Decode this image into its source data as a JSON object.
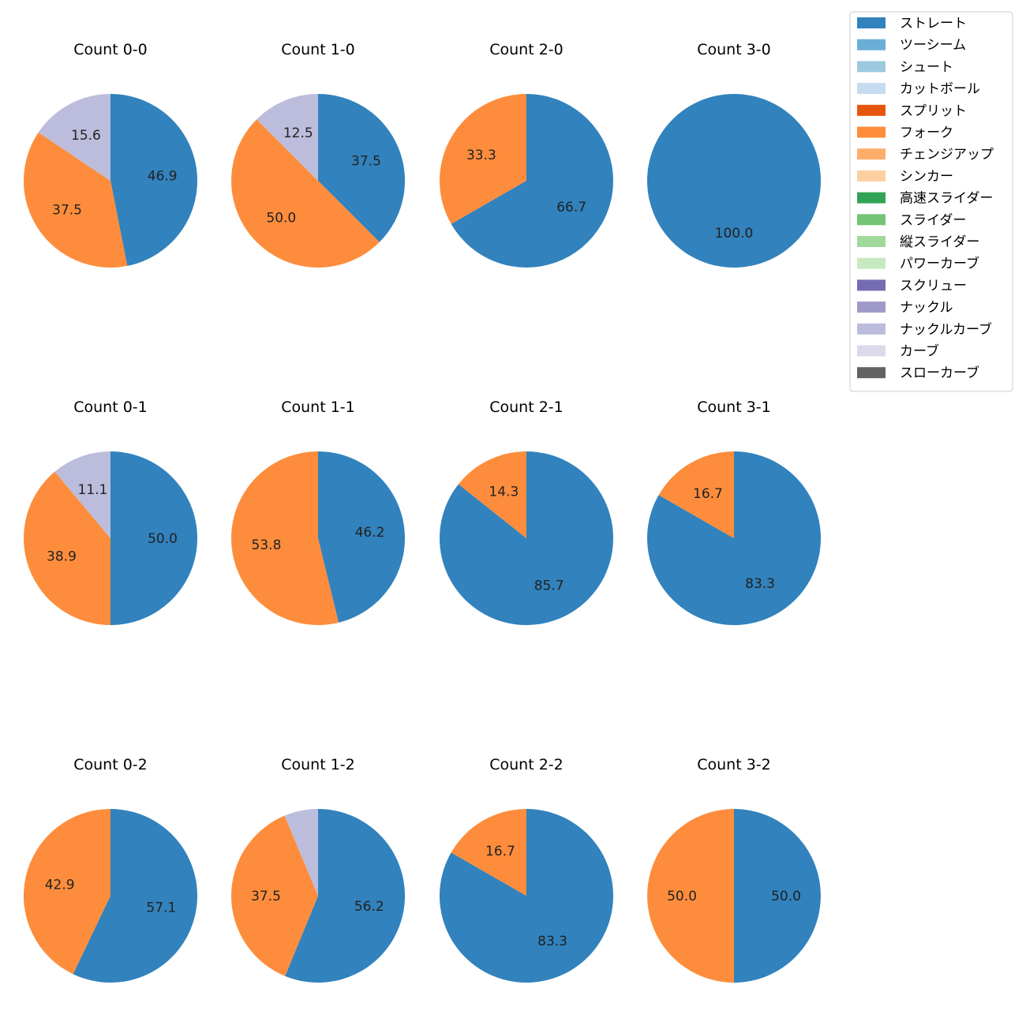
{
  "chart_data": {
    "type": "pie",
    "legend": {
      "placement": "top-right",
      "entries": [
        {
          "label": "ストレート",
          "color": "#3182bd"
        },
        {
          "label": "ツーシーム",
          "color": "#6baed6"
        },
        {
          "label": "シュート",
          "color": "#9ecae1"
        },
        {
          "label": "カットボール",
          "color": "#c6dbef"
        },
        {
          "label": "スプリット",
          "color": "#e6550d"
        },
        {
          "label": "フォーク",
          "color": "#fd8d3c"
        },
        {
          "label": "チェンジアップ",
          "color": "#fdae6b"
        },
        {
          "label": "シンカー",
          "color": "#fdd0a2"
        },
        {
          "label": "高速スライダー",
          "color": "#31a354"
        },
        {
          "label": "スライダー",
          "color": "#74c476"
        },
        {
          "label": "縦スライダー",
          "color": "#a1d99b"
        },
        {
          "label": "パワーカーブ",
          "color": "#c7e9c0"
        },
        {
          "label": "スクリュー",
          "color": "#756bb1"
        },
        {
          "label": "ナックル",
          "color": "#9e9ac8"
        },
        {
          "label": "ナックルカーブ",
          "color": "#bcbddc"
        },
        {
          "label": "カーブ",
          "color": "#dadaeb"
        },
        {
          "label": "スローカーブ",
          "color": "#636363"
        }
      ]
    },
    "charts": [
      {
        "title": "Count 0-0",
        "slices": [
          {
            "type": "ストレート",
            "value": 46.9,
            "label": "46.9"
          },
          {
            "type": "フォーク",
            "value": 37.5,
            "label": "37.5"
          },
          {
            "type": "ナックルカーブ",
            "value": 15.6,
            "label": "15.6"
          }
        ]
      },
      {
        "title": "Count 1-0",
        "slices": [
          {
            "type": "ストレート",
            "value": 37.5,
            "label": "37.5"
          },
          {
            "type": "フォーク",
            "value": 50.0,
            "label": "50.0"
          },
          {
            "type": "ナックルカーブ",
            "value": 12.5,
            "label": "12.5"
          }
        ]
      },
      {
        "title": "Count 2-0",
        "slices": [
          {
            "type": "ストレート",
            "value": 66.7,
            "label": "66.7"
          },
          {
            "type": "フォーク",
            "value": 33.3,
            "label": "33.3"
          }
        ]
      },
      {
        "title": "Count 3-0",
        "slices": [
          {
            "type": "ストレート",
            "value": 100.0,
            "label": "100.0"
          }
        ]
      },
      {
        "title": "Count 0-1",
        "slices": [
          {
            "type": "ストレート",
            "value": 50.0,
            "label": "50.0"
          },
          {
            "type": "フォーク",
            "value": 38.9,
            "label": "38.9"
          },
          {
            "type": "ナックルカーブ",
            "value": 11.1,
            "label": "11.1"
          }
        ]
      },
      {
        "title": "Count 1-1",
        "slices": [
          {
            "type": "ストレート",
            "value": 46.2,
            "label": "46.2"
          },
          {
            "type": "フォーク",
            "value": 53.8,
            "label": "53.8"
          }
        ]
      },
      {
        "title": "Count 2-1",
        "slices": [
          {
            "type": "ストレート",
            "value": 85.7,
            "label": "85.7"
          },
          {
            "type": "フォーク",
            "value": 14.3,
            "label": "14.3"
          }
        ]
      },
      {
        "title": "Count 3-1",
        "slices": [
          {
            "type": "ストレート",
            "value": 83.3,
            "label": "83.3"
          },
          {
            "type": "フォーク",
            "value": 16.7,
            "label": "16.7"
          }
        ]
      },
      {
        "title": "Count 0-2",
        "slices": [
          {
            "type": "ストレート",
            "value": 57.1,
            "label": "57.1"
          },
          {
            "type": "フォーク",
            "value": 42.9,
            "label": "42.9"
          }
        ]
      },
      {
        "title": "Count 1-2",
        "slices": [
          {
            "type": "ストレート",
            "value": 56.2,
            "label": "56.2"
          },
          {
            "type": "フォーク",
            "value": 37.5,
            "label": "37.5"
          },
          {
            "type": "ナックルカーブ",
            "value": 6.3,
            "label": ""
          }
        ]
      },
      {
        "title": "Count 2-2",
        "slices": [
          {
            "type": "ストレート",
            "value": 83.3,
            "label": "83.3"
          },
          {
            "type": "フォーク",
            "value": 16.7,
            "label": "16.7"
          }
        ]
      },
      {
        "title": "Count 3-2",
        "slices": [
          {
            "type": "ストレート",
            "value": 50.0,
            "label": "50.0"
          },
          {
            "type": "フォーク",
            "value": 50.0,
            "label": "50.0"
          }
        ]
      }
    ]
  }
}
